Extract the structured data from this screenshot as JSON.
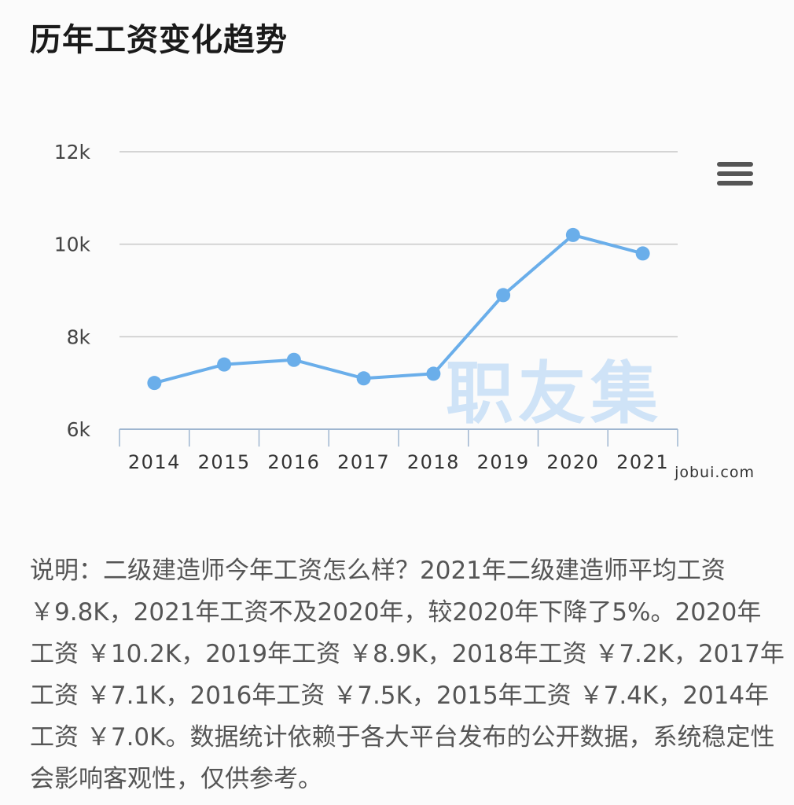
{
  "title": "历年工资变化趋势",
  "source_label": "jobui.com",
  "watermark": "职友集",
  "description": "说明：二级建造师今年工资怎么样？2021年二级建造师平均工资 ￥9.8K，2021年工资不及2020年，较2020年下降了5%。2020年工资 ￥10.2K，2019年工资 ￥8.9K，2018年工资 ￥7.2K，2017年工资 ￥7.1K，2016年工资 ￥7.5K，2015年工资 ￥7.4K，2014年工资 ￥7.0K。数据统计依赖于各大平台发布的公开数据，系统稳定性会影响客观性，仅供参考。",
  "menu_icon": "hamburger-menu-icon",
  "colors": {
    "line": "#6aaeea",
    "grid": "#c8c8c8",
    "axis": "#9fb6d0",
    "watermark": "#cfe3f7"
  },
  "chart_data": {
    "type": "line",
    "categories": [
      "2014",
      "2015",
      "2016",
      "2017",
      "2018",
      "2019",
      "2020",
      "2021"
    ],
    "values": [
      7.0,
      7.4,
      7.5,
      7.1,
      7.2,
      8.9,
      10.2,
      9.8
    ],
    "ylim": [
      6,
      12
    ],
    "yticks": [
      6,
      8,
      10,
      12
    ],
    "ytick_labels": [
      "6k",
      "8k",
      "10k",
      "12k"
    ],
    "grid": true
  }
}
